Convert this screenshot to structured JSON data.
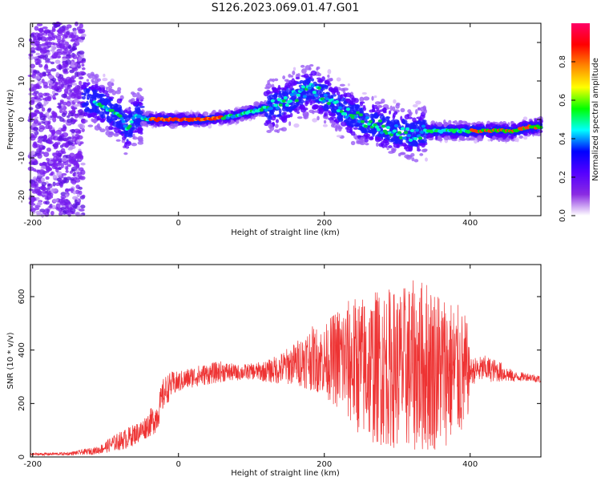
{
  "figure": {
    "title": "S126.2023.069.01.47.G01"
  },
  "chart_data": [
    {
      "type": "heatmap",
      "xlabel": "Height of straight line (km)",
      "ylabel": "Frequency (Hz)",
      "xlim": [
        -203,
        497
      ],
      "ylim": [
        -25,
        25
      ],
      "xticks": [
        -200,
        0,
        200,
        400
      ],
      "yticks": [
        -20,
        -10,
        0,
        10,
        20
      ],
      "colorbar": {
        "label": "Normalized spectral amplitude",
        "range": [
          0,
          1
        ],
        "ticks": [
          "0.0",
          "0.2",
          "0.4",
          "0.6",
          "0.8"
        ],
        "colormap": [
          "#ffffff",
          "#8a2be2",
          "#5500ff",
          "#0000ff",
          "#00ffff",
          "#00ff00",
          "#ffff00",
          "#ff8800",
          "#ff0000",
          "#ff0066"
        ]
      },
      "ridge": {
        "x": [
          -120,
          -100,
          -80,
          -70,
          -60,
          -40,
          -20,
          0,
          40,
          80,
          100,
          120,
          140,
          160,
          180,
          200,
          220,
          240,
          260,
          280,
          300,
          320,
          340,
          360,
          380,
          400,
          420,
          440,
          460,
          480,
          497
        ],
        "y": [
          5,
          3,
          1,
          -3,
          1,
          0,
          0,
          0,
          0,
          1,
          2,
          3,
          4,
          6,
          8,
          6,
          3,
          1,
          -1,
          -2,
          -3,
          -4,
          -3,
          -3,
          -3,
          -3,
          -3,
          -3,
          -3,
          -2,
          -2
        ]
      },
      "noise_region_x": [
        -203,
        -130
      ]
    },
    {
      "type": "line",
      "xlabel": "Height of straight line (km)",
      "ylabel": "SNR (10 * v/v)",
      "xlim": [
        -203,
        497
      ],
      "ylim": [
        0,
        720
      ],
      "xticks": [
        -200,
        0,
        200,
        400
      ],
      "yticks": [
        0,
        200,
        400,
        600
      ],
      "series": [
        {
          "color": "#ee3333",
          "x": [
            -203,
            -150,
            -110,
            -90,
            -70,
            -50,
            -30,
            -20,
            -10,
            0,
            20,
            40,
            60,
            80,
            100,
            120,
            140,
            160,
            180,
            200,
            220,
            240,
            260,
            280,
            300,
            320,
            340,
            360,
            380,
            395,
            400,
            420,
            440,
            460,
            480,
            497
          ],
          "y": [
            10,
            12,
            25,
            50,
            70,
            100,
            150,
            240,
            270,
            280,
            300,
            310,
            320,
            315,
            320,
            320,
            330,
            350,
            370,
            360,
            370,
            350,
            330,
            340,
            330,
            340,
            340,
            330,
            320,
            300,
            320,
            330,
            320,
            300,
            300,
            290
          ],
          "spread": [
            5,
            6,
            15,
            30,
            40,
            40,
            60,
            60,
            50,
            40,
            40,
            40,
            40,
            30,
            30,
            40,
            60,
            80,
            120,
            130,
            200,
            250,
            280,
            300,
            300,
            320,
            330,
            300,
            260,
            230,
            50,
            50,
            40,
            20,
            15,
            15
          ]
        }
      ]
    }
  ]
}
